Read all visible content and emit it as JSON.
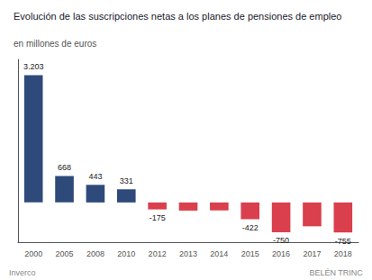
{
  "chart_data": {
    "type": "bar",
    "title": "Evolución de las suscripciones netas a los planes de pensiones de empleo",
    "subtitle": "en millones de euros",
    "categories": [
      "2000",
      "2005",
      "2008",
      "2010",
      "2012",
      "2013",
      "2014",
      "2015",
      "2016",
      "2017",
      "2018"
    ],
    "values": [
      3203,
      668,
      443,
      331,
      -175,
      -205,
      -200,
      -422,
      -750,
      -600,
      -755
    ],
    "value_labels": [
      "3.203",
      "668",
      "443",
      "331",
      "-175",
      null,
      null,
      "-422",
      "-750",
      null,
      "-755"
    ],
    "data_labels": true,
    "colors": [
      "#2e4a7a",
      "#2e4a7a",
      "#2e4a7a",
      "#2e4a7a",
      "#d93f4c",
      "#d93f4c",
      "#d93f4c",
      "#d93f4c",
      "#d93f4c",
      "#d93f4c",
      "#d93f4c"
    ],
    "ylim": [
      -1000,
      3600
    ],
    "tick_labels": "x",
    "grid": false,
    "annotations": [
      "Inverco",
      "BELÉN TRINC"
    ]
  }
}
